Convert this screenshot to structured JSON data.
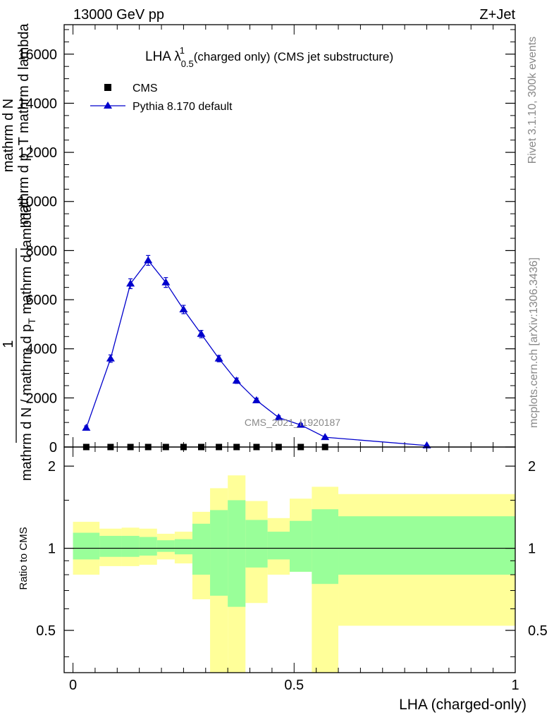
{
  "header": {
    "left": "13000 GeV pp",
    "right": "Z+Jet"
  },
  "side_labels": {
    "rivet": "Rivet 3.1.10,  300k events",
    "mcplots": "mcplots.cern.ch [arXiv:1306.3436]"
  },
  "watermark": "CMS_2021_I1920187",
  "chart_data": [
    {
      "type": "scatter",
      "title": "LHA λ",
      "title_sup": "1",
      "title_sub": "0.5",
      "title_rest": " (charged only) (CMS jet substructure)",
      "ylabel_numerator": "mathrm d N",
      "ylabel_frac_top": "1",
      "ylabel_frac_bottom": "mathrm d N / mathrm d p",
      "ylabel_frac_bottom_sub": "T",
      "ylabel_frac_bottom_rest": " mathrm d lambda",
      "ylabel_stack": "mathrm d p_T mathrm d lambda",
      "ylim": [
        0,
        17200
      ],
      "yticks": [
        0,
        2000,
        4000,
        6000,
        8000,
        10000,
        12000,
        14000,
        16000
      ],
      "ytick_labels": [
        "0",
        "2000",
        "4000",
        "6000",
        "8000",
        "10000",
        "12000",
        "14000",
        "16000"
      ],
      "xlim": [
        -0.02,
        1.0
      ],
      "legend_position": "top-left",
      "series": [
        {
          "name": "CMS",
          "color": "#000000",
          "marker": "square",
          "x": [
            0.03,
            0.085,
            0.13,
            0.17,
            0.21,
            0.25,
            0.29,
            0.33,
            0.37,
            0.415,
            0.465,
            0.515,
            0.57
          ],
          "y": [
            0,
            0,
            0,
            0,
            0,
            0,
            0,
            0,
            0,
            0,
            0,
            0,
            0
          ]
        },
        {
          "name": "Pythia 8.170 default",
          "color": "#0000cc",
          "marker": "triangle",
          "x": [
            0.03,
            0.085,
            0.13,
            0.17,
            0.21,
            0.25,
            0.29,
            0.33,
            0.37,
            0.415,
            0.465,
            0.515,
            0.57,
            0.8
          ],
          "y": [
            780,
            3600,
            6650,
            7600,
            6700,
            5600,
            4600,
            3600,
            2700,
            1900,
            1200,
            900,
            400,
            60
          ],
          "yerr": [
            80,
            150,
            200,
            200,
            200,
            170,
            150,
            130,
            110,
            90,
            70,
            60,
            40,
            20
          ]
        }
      ]
    },
    {
      "type": "area",
      "ylabel": "Ratio to CMS",
      "ylim": [
        0.35,
        2.35
      ],
      "yticks": [
        0.5,
        1,
        2
      ],
      "ytick_labels": [
        "0.5",
        "1",
        "2"
      ],
      "xlim": [
        -0.02,
        1.0
      ],
      "xticks": [
        0,
        0.5,
        1
      ],
      "xtick_labels": [
        "0",
        "0.5",
        "1"
      ],
      "xlabel": "LHA (charged-only)",
      "reference_line": 1,
      "bins": [
        0.0,
        0.06,
        0.11,
        0.15,
        0.19,
        0.23,
        0.27,
        0.31,
        0.35,
        0.39,
        0.44,
        0.49,
        0.54,
        0.6,
        1.0
      ],
      "band_outer": {
        "color": "#ffff99",
        "low": [
          0.8,
          0.86,
          0.86,
          0.87,
          0.91,
          0.88,
          0.65,
          0.2,
          0.2,
          0.63,
          0.8,
          0.82,
          0.2,
          0.52
        ],
        "high": [
          1.25,
          1.18,
          1.19,
          1.18,
          1.13,
          1.15,
          1.36,
          1.66,
          1.85,
          1.49,
          1.29,
          1.52,
          1.68,
          1.58
        ]
      },
      "band_inner": {
        "color": "#99ff99",
        "low": [
          0.91,
          0.93,
          0.93,
          0.94,
          0.97,
          0.95,
          0.8,
          0.67,
          0.61,
          0.85,
          0.91,
          0.82,
          0.74,
          0.8
        ],
        "high": [
          1.14,
          1.11,
          1.11,
          1.1,
          1.07,
          1.08,
          1.23,
          1.38,
          1.5,
          1.27,
          1.15,
          1.26,
          1.39,
          1.31
        ]
      }
    }
  ]
}
